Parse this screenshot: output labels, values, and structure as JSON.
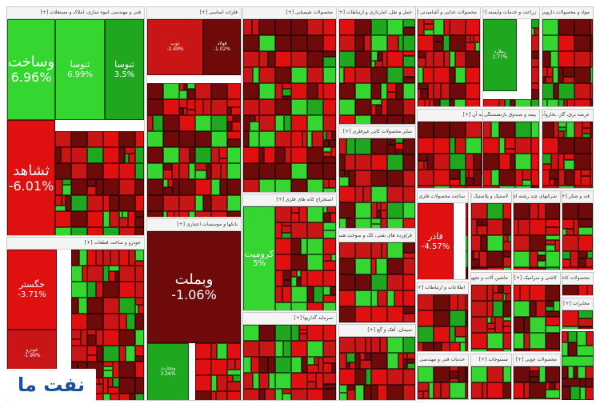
{
  "chart_data": {
    "type": "treemap",
    "title": "",
    "colors": {
      "up_strong": "#35d62f",
      "up": "#1fa81f",
      "down": "#c91515",
      "down_strong": "#e01010",
      "down_dark": "#6e0a0a"
    },
    "sectors": [
      {
        "name": "فنی و مهندسی انبوه سازی، املاک و مستغلات [+]",
        "tiles": [
          {
            "name": "وساخت",
            "value": "6.96%",
            "change": 6.96
          },
          {
            "name": "ثنوسا",
            "value": "6.99%",
            "change": 6.99
          },
          {
            "name": "ثنوسا",
            "value": "3.5%",
            "change": 3.5
          },
          {
            "name": "ثشاهد",
            "value": "-6.01%",
            "change": -6.01
          }
        ]
      },
      {
        "name": "فلزات اساسی [+]",
        "tiles": [
          {
            "name": "فولاد",
            "value": "-1.02%",
            "change": -1.02
          },
          {
            "name": "ذوب",
            "value": "-2.49%",
            "change": -2.49
          }
        ]
      },
      {
        "name": "محصولات شیمیایی [+]",
        "tiles": []
      },
      {
        "name": "خودرو و ساخت قطعات [+]",
        "tiles": [
          {
            "name": "خگستر",
            "value": "-3.71%",
            "change": -3.71
          },
          {
            "name": "خودرو",
            "value": "-1.90%",
            "change": -1.9
          }
        ]
      },
      {
        "name": "بانکها و موسسات اعتباری [+]",
        "tiles": [
          {
            "name": "وبملت",
            "value": "-1.06%",
            "change": -1.06
          },
          {
            "name": "وتجارت",
            "value": "3.26%",
            "change": 3.26
          }
        ]
      },
      {
        "name": "استخراج کانه های فلزی [+]",
        "tiles": [
          {
            "name": "کرومیت",
            "value": "5%",
            "change": 5
          }
        ]
      },
      {
        "name": "سرمایه گذاریها [+]",
        "tiles": []
      },
      {
        "name": "حمل و نقل، انبارداری و ارتباطات [+]",
        "tiles": []
      },
      {
        "name": "سایر محصولات کانی غیرفلزی [+]",
        "tiles": []
      },
      {
        "name": "فراورده های نفتی، کک و سوخت هسته ای [+]",
        "tiles": []
      },
      {
        "name": "سیمان، آهک و گچ [+]",
        "tiles": []
      },
      {
        "name": "محصولات غذایی و آشامیدنی [+]",
        "tiles": []
      },
      {
        "name": "زراعت و خدمات وابسته [+]",
        "tiles": [
          {
            "name": "زملارد",
            "value": "2.77%",
            "change": 2.77
          }
        ]
      },
      {
        "name": "ساخت محصولات فلزی [+]",
        "tiles": [
          {
            "name": "فاذر",
            "value": "-4.57%",
            "change": -4.57
          }
        ]
      },
      {
        "name": "مواد و محصولات دارویی [+]",
        "tiles": []
      },
      {
        "name": "رایانه و فعالیت‌های وابسته به آن [+]",
        "tiles": []
      },
      {
        "name": "بیمه و صندوق بازنشستگی به جز [+]",
        "tiles": []
      },
      {
        "name": "عرضه برق، گاز، بخاروآب گرم [+]",
        "tiles": []
      },
      {
        "name": "لاستیک و پلاستیک [+]",
        "tiles": []
      },
      {
        "name": "شرکتهای چند رشته ای صنعتی [+]",
        "tiles": []
      },
      {
        "name": "قند و شکر [+]",
        "tiles": []
      },
      {
        "name": "اطلاعات و ارتباطات [+]",
        "tiles": []
      },
      {
        "name": "ماشین آلات و تجهیزات [+]",
        "tiles": []
      },
      {
        "name": "کاشی و سرامیک [+]",
        "tiles": []
      },
      {
        "name": "محصولات کاغذی [+]",
        "tiles": []
      },
      {
        "name": "مخابرات [+]",
        "tiles": []
      },
      {
        "name": "خدمات فنی و مهندسی [+]",
        "tiles": []
      },
      {
        "name": "منسوجات [+]",
        "tiles": []
      },
      {
        "name": "محصولات چوبی [+]",
        "tiles": []
      }
    ]
  },
  "logo": {
    "text": "نفت ما"
  }
}
